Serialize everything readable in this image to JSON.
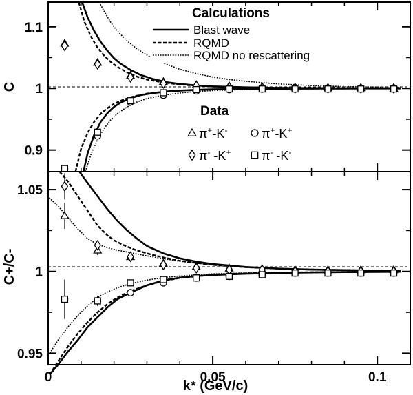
{
  "chart_data": [
    {
      "type": "line",
      "panel": "top",
      "ylabel": "C",
      "xlabel": "",
      "xlim": [
        0,
        0.11
      ],
      "ylim": [
        0.865,
        1.14
      ],
      "yticks": [
        0.9,
        1.0,
        1.1
      ],
      "ytick_labels": [
        "0.9",
        "1",
        "1.1"
      ],
      "reference_line": 1.0,
      "legend": {
        "title": "Calculations",
        "entries": [
          {
            "name": "Blast wave",
            "style": "solid"
          },
          {
            "name": "RQMD",
            "style": "dashed"
          },
          {
            "name": "RQMD no rescattering",
            "style": "dotted"
          }
        ]
      },
      "data_legend": {
        "title": "Data",
        "entries": [
          {
            "marker": "triangle",
            "label_parts": [
              {
                "t": "π"
              },
              {
                "t": "+",
                "sup": true
              },
              {
                "t": "-K"
              },
              {
                "t": "-",
                "sup": true
              }
            ]
          },
          {
            "marker": "circle",
            "label_parts": [
              {
                "t": "π"
              },
              {
                "t": "+",
                "sup": true
              },
              {
                "t": "-K"
              },
              {
                "t": "+",
                "sup": true
              }
            ]
          },
          {
            "marker": "diamond",
            "label_parts": [
              {
                "t": "π"
              },
              {
                "t": "-",
                "sup": true
              },
              {
                "t": " -K"
              },
              {
                "t": "+",
                "sup": true
              }
            ]
          },
          {
            "marker": "square",
            "label_parts": [
              {
                "t": "π"
              },
              {
                "t": "-",
                "sup": true
              },
              {
                "t": " -K"
              },
              {
                "t": "-",
                "sup": true
              }
            ]
          }
        ]
      },
      "curves": [
        {
          "name": "Blast wave",
          "style": "solid",
          "branch": "upper",
          "x": [
            0.0103,
            0.012,
            0.014,
            0.016,
            0.018,
            0.02,
            0.022,
            0.025,
            0.028,
            0.032,
            0.036,
            0.04,
            0.045,
            0.05,
            0.06,
            0.07,
            0.08,
            0.09,
            0.1,
            0.107
          ],
          "y": [
            1.14,
            1.115,
            1.093,
            1.075,
            1.061,
            1.049,
            1.04,
            1.03,
            1.022,
            1.015,
            1.01,
            1.0072,
            1.0048,
            1.0033,
            1.0017,
            1.0009,
            1.0005,
            1.0003,
            1.0002,
            1.0001
          ]
        },
        {
          "name": "Blast wave",
          "style": "solid",
          "branch": "lower",
          "x": [
            0.0107,
            0.012,
            0.014,
            0.016,
            0.018,
            0.02,
            0.022,
            0.025,
            0.028,
            0.032,
            0.036,
            0.04,
            0.045,
            0.05,
            0.06,
            0.07,
            0.08,
            0.09,
            0.1,
            0.107
          ],
          "y": [
            0.865,
            0.895,
            0.925,
            0.946,
            0.96,
            0.97,
            0.977,
            0.984,
            0.989,
            0.9925,
            0.995,
            0.9965,
            0.9977,
            0.9985,
            0.9992,
            0.9995,
            0.9997,
            0.9998,
            0.9999,
            0.9999
          ]
        },
        {
          "name": "RQMD",
          "style": "dashed",
          "branch": "upper",
          "x": [
            0.0093,
            0.011,
            0.013,
            0.015,
            0.017,
            0.019,
            0.021,
            0.024,
            0.027,
            0.03,
            0.035,
            0.04,
            0.045,
            0.05,
            0.06,
            0.07,
            0.08,
            0.09,
            0.1,
            0.107
          ],
          "y": [
            1.14,
            1.108,
            1.084,
            1.066,
            1.053,
            1.043,
            1.035,
            1.026,
            1.019,
            1.0145,
            1.0095,
            1.0064,
            1.0044,
            1.0031,
            1.0016,
            1.0009,
            1.0005,
            1.0003,
            1.0002,
            1.0001
          ]
        },
        {
          "name": "RQMD",
          "style": "dashed",
          "branch": "lower",
          "x": [
            0.0083,
            0.01,
            0.012,
            0.014,
            0.016,
            0.018,
            0.02,
            0.023,
            0.026,
            0.03,
            0.035,
            0.04,
            0.045,
            0.05,
            0.06,
            0.07,
            0.08,
            0.09,
            0.1,
            0.107
          ],
          "y": [
            0.865,
            0.902,
            0.928,
            0.946,
            0.959,
            0.968,
            0.975,
            0.982,
            0.987,
            0.9915,
            0.9945,
            0.9963,
            0.9975,
            0.9983,
            0.9991,
            0.9995,
            0.9997,
            0.9998,
            0.9999,
            0.9999
          ]
        },
        {
          "name": "RQMD no rescattering",
          "style": "dotted",
          "branch": "upper",
          "x": [
            0.0155,
            0.017,
            0.019,
            0.021,
            0.024,
            0.027,
            0.03,
            0.035,
            0.04,
            0.045,
            0.05,
            0.055,
            0.06,
            0.07,
            0.08,
            0.09,
            0.1,
            0.107
          ],
          "y": [
            1.14,
            1.125,
            1.107,
            1.093,
            1.077,
            1.064,
            1.054,
            1.041,
            1.031,
            1.024,
            1.0185,
            1.0145,
            1.0115,
            1.0072,
            1.0046,
            1.003,
            1.002,
            1.0015
          ]
        },
        {
          "name": "RQMD no rescattering",
          "style": "dotted",
          "branch": "lower",
          "x": [
            0.0113,
            0.013,
            0.015,
            0.017,
            0.019,
            0.021,
            0.024,
            0.027,
            0.03,
            0.035,
            0.04,
            0.045,
            0.05,
            0.06,
            0.07,
            0.08,
            0.09,
            0.1,
            0.107
          ],
          "y": [
            0.865,
            0.893,
            0.917,
            0.935,
            0.949,
            0.959,
            0.97,
            0.978,
            0.9835,
            0.989,
            0.9925,
            0.995,
            0.9965,
            0.9982,
            0.999,
            0.9994,
            0.9996,
            0.9998,
            0.9999
          ]
        }
      ],
      "series": [
        {
          "name": "π+-K-",
          "marker": "triangle",
          "x": [
            0.005,
            0.015,
            0.025,
            0.035,
            0.045,
            0.055,
            0.065,
            0.075,
            0.085,
            0.095,
            0.105
          ],
          "y": [
            1.073,
            1.042,
            1.021,
            1.011,
            1.006,
            1.004,
            1.003,
            1.002,
            1.001,
            1.001,
            1.0
          ]
        },
        {
          "name": "π+-K+",
          "marker": "circle",
          "x": [
            0.005,
            0.015,
            0.025,
            0.035,
            0.045,
            0.055,
            0.065,
            0.075,
            0.085,
            0.095,
            0.105
          ],
          "y": [
            0.87,
            0.923,
            0.978,
            0.989,
            0.996,
            0.998,
            0.999,
            0.999,
            0.999,
            0.999,
            0.999
          ]
        },
        {
          "name": "π- -K+",
          "marker": "diamond",
          "x": [
            0.005,
            0.015,
            0.025,
            0.035,
            0.045,
            0.055,
            0.065,
            0.075,
            0.085,
            0.095,
            0.105
          ],
          "y": [
            1.069,
            1.039,
            1.018,
            1.008,
            1.004,
            1.002,
            1.001,
            1.0,
            1.0,
            1.0,
            1.0
          ]
        },
        {
          "name": "π- -K-",
          "marker": "square",
          "x": [
            0.005,
            0.015,
            0.025,
            0.035,
            0.045,
            0.055,
            0.065,
            0.075,
            0.085,
            0.095,
            0.105
          ],
          "y": [
            0.87,
            0.929,
            0.98,
            0.993,
            0.998,
            0.999,
            0.999,
            0.999,
            0.999,
            0.999,
            0.999
          ]
        }
      ]
    },
    {
      "type": "line",
      "panel": "bottom",
      "ylabel": "C+/C-",
      "xlabel": "k* (GeV/c)",
      "xlim": [
        0,
        0.11
      ],
      "ylim": [
        0.943,
        1.061
      ],
      "xticks": [
        0,
        0.05,
        0.1
      ],
      "xtick_labels": [
        "0",
        "0.05",
        "0.1"
      ],
      "yticks": [
        0.95,
        1.0,
        1.05
      ],
      "ytick_labels": [
        "0.95",
        "1",
        "1.05"
      ],
      "reference_line": 1.0,
      "curves": [
        {
          "name": "Blast wave",
          "style": "solid",
          "branch": "upper",
          "x": [
            0.0095,
            0.012,
            0.015,
            0.018,
            0.021,
            0.024,
            0.027,
            0.03,
            0.035,
            0.04,
            0.045,
            0.05,
            0.06,
            0.07,
            0.08,
            0.09,
            0.1,
            0.107
          ],
          "y": [
            1.061,
            1.054,
            1.046,
            1.038,
            1.031,
            1.025,
            1.02,
            1.0155,
            1.011,
            1.008,
            1.006,
            1.0045,
            1.0027,
            1.0017,
            1.0011,
            1.0008,
            1.0005,
            1.0004
          ]
        },
        {
          "name": "Blast wave",
          "style": "solid",
          "branch": "lower",
          "x": [
            0.0005,
            0.003,
            0.006,
            0.009,
            0.012,
            0.015,
            0.018,
            0.021,
            0.025,
            0.03,
            0.035,
            0.04,
            0.045,
            0.05,
            0.06,
            0.07,
            0.08,
            0.09,
            0.1,
            0.107
          ],
          "y": [
            0.937,
            0.943,
            0.951,
            0.958,
            0.966,
            0.972,
            0.978,
            0.983,
            0.987,
            0.9915,
            0.9945,
            0.9962,
            0.9972,
            0.9978,
            0.9986,
            0.9991,
            0.9994,
            0.9996,
            0.9997,
            0.9998
          ]
        },
        {
          "name": "RQMD",
          "style": "dashed",
          "branch": "upper",
          "x": [
            0.0035,
            0.006,
            0.009,
            0.012,
            0.015,
            0.018,
            0.02,
            0.023,
            0.026,
            0.03,
            0.035,
            0.04,
            0.05,
            0.06,
            0.07,
            0.08,
            0.09,
            0.1,
            0.107
          ],
          "y": [
            1.061,
            1.055,
            1.046,
            1.037,
            1.028,
            1.022,
            1.019,
            1.016,
            1.0135,
            1.011,
            1.0085,
            1.0065,
            1.004,
            1.0026,
            1.0017,
            1.0011,
            1.0008,
            1.0005,
            1.0004
          ]
        },
        {
          "name": "RQMD",
          "style": "dashed",
          "branch": "lower",
          "x": [
            0.0005,
            0.003,
            0.006,
            0.009,
            0.012,
            0.015,
            0.018,
            0.021,
            0.025,
            0.03,
            0.035,
            0.04,
            0.05,
            0.06,
            0.07,
            0.08,
            0.09,
            0.1,
            0.107
          ],
          "y": [
            0.937,
            0.945,
            0.954,
            0.962,
            0.969,
            0.975,
            0.98,
            0.984,
            0.988,
            0.9915,
            0.9942,
            0.996,
            0.998,
            0.9988,
            0.9993,
            0.9995,
            0.9997,
            0.9998,
            0.9998
          ]
        },
        {
          "name": "RQMD no rescattering",
          "style": "dotted",
          "branch": "upper",
          "x": [
            0.0003,
            0.003,
            0.006,
            0.009,
            0.012,
            0.015,
            0.018,
            0.021,
            0.025,
            0.03,
            0.035,
            0.04,
            0.05,
            0.06,
            0.07,
            0.08,
            0.09,
            0.1,
            0.107
          ],
          "y": [
            1.045,
            1.04,
            1.033,
            1.026,
            1.02,
            1.0165,
            1.0145,
            1.013,
            1.0115,
            1.0095,
            1.0078,
            1.0062,
            1.004,
            1.0027,
            1.0018,
            1.0012,
            1.0008,
            1.0005,
            1.0004
          ]
        },
        {
          "name": "RQMD no rescattering",
          "style": "dotted",
          "branch": "lower",
          "x": [
            0.0005,
            0.003,
            0.006,
            0.009,
            0.012,
            0.015,
            0.018,
            0.021,
            0.025,
            0.03,
            0.035,
            0.04,
            0.05,
            0.06,
            0.07,
            0.08,
            0.09,
            0.1,
            0.107
          ],
          "y": [
            0.95,
            0.958,
            0.966,
            0.973,
            0.979,
            0.984,
            0.9875,
            0.99,
            0.9925,
            0.9947,
            0.9962,
            0.9972,
            0.9985,
            0.9991,
            0.9994,
            0.9996,
            0.9997,
            0.9998,
            0.9999
          ]
        }
      ],
      "series": [
        {
          "name": "π+-K-",
          "marker": "triangle",
          "x": [
            0.005,
            0.015,
            0.025,
            0.035,
            0.045,
            0.055,
            0.065,
            0.075,
            0.085,
            0.095,
            0.105
          ],
          "y": [
            1.034,
            1.013,
            1.009,
            1.005,
            1.003,
            1.002,
            1.001,
            1.001,
            1.001,
            1.001,
            1.001
          ],
          "err": [
            0.008,
            0.003,
            0.002,
            0.002,
            0.0015,
            0.001,
            0.001,
            0.001,
            0.001,
            0.001,
            0.001
          ]
        },
        {
          "name": "π+-K+",
          "marker": "circle",
          "x": [
            0.005,
            0.015,
            0.025,
            0.035,
            0.045,
            0.055,
            0.065,
            0.075,
            0.085,
            0.095,
            0.105
          ],
          "y": [
            0.983,
            0.982,
            0.987,
            0.993,
            0.996,
            0.997,
            0.998,
            0.999,
            0.999,
            0.999,
            0.999
          ],
          "err": [
            0.012,
            0.003,
            0.002,
            0.002,
            0.0015,
            0.001,
            0.001,
            0.001,
            0.001,
            0.001,
            0.001
          ]
        },
        {
          "name": "π- -K+",
          "marker": "diamond",
          "x": [
            0.005,
            0.015,
            0.025,
            0.035,
            0.045,
            0.055,
            0.065,
            0.075,
            0.085,
            0.095,
            0.105
          ],
          "y": [
            1.052,
            1.016,
            1.009,
            1.004,
            1.002,
            1.001,
            1.001,
            1.0,
            1.0,
            1.0,
            1.0
          ],
          "err": [
            0.008,
            0.003,
            0.002,
            0.002,
            0.0015,
            0.001,
            0.001,
            0.001,
            0.001,
            0.001,
            0.001
          ]
        },
        {
          "name": "π- -K-",
          "marker": "square",
          "x": [
            0.005,
            0.015,
            0.025,
            0.035,
            0.045,
            0.055,
            0.065,
            0.075,
            0.085,
            0.095,
            0.105
          ],
          "y": [
            0.983,
            0.982,
            0.993,
            0.995,
            0.996,
            0.997,
            0.998,
            0.999,
            0.999,
            0.999,
            0.999
          ],
          "err": [
            0.012,
            0.003,
            0.002,
            0.002,
            0.0015,
            0.001,
            0.001,
            0.001,
            0.001,
            0.001,
            0.001
          ]
        }
      ]
    }
  ]
}
